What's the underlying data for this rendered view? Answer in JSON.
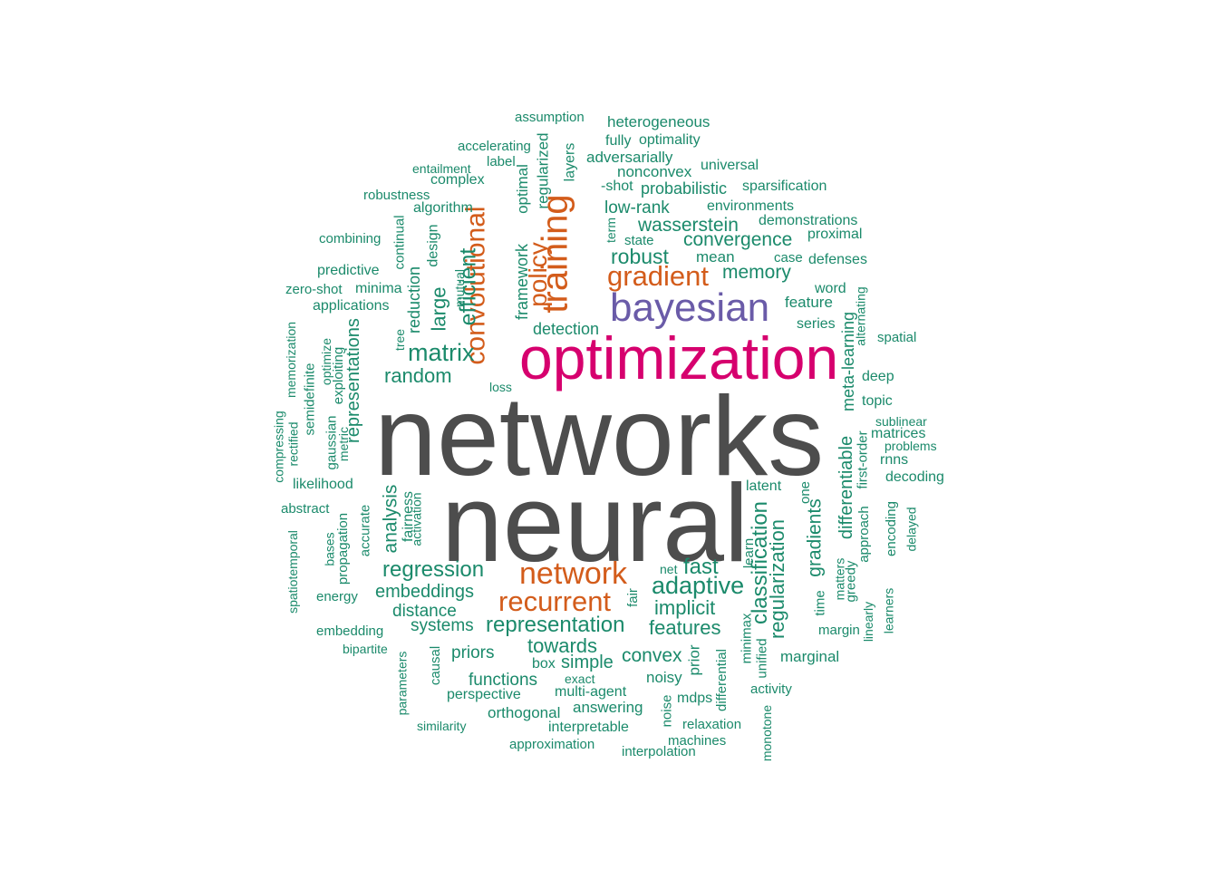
{
  "colors": {
    "gray": "#4d4d4d",
    "magenta": "#d6006e",
    "purple": "#6a5ba8",
    "orange": "#d35c1b",
    "teal": "#1b8a6b"
  },
  "words": [
    {
      "text": "networks",
      "color": "gray"
    },
    {
      "text": "neural",
      "color": "gray"
    },
    {
      "text": "optimization",
      "color": "magenta"
    },
    {
      "text": "bayesian",
      "color": "purple"
    },
    {
      "text": "training",
      "color": "orange"
    },
    {
      "text": "convolutional",
      "color": "orange"
    },
    {
      "text": "gradient",
      "color": "orange"
    },
    {
      "text": "network",
      "color": "orange"
    },
    {
      "text": "recurrent",
      "color": "orange"
    },
    {
      "text": "policy",
      "color": "orange"
    },
    {
      "text": "efficient",
      "color": "teal"
    },
    {
      "text": "matrix",
      "color": "teal"
    },
    {
      "text": "robust",
      "color": "teal"
    },
    {
      "text": "memory",
      "color": "teal"
    },
    {
      "text": "wasserstein",
      "color": "teal"
    },
    {
      "text": "convergence",
      "color": "teal"
    },
    {
      "text": "low-rank",
      "color": "teal"
    },
    {
      "text": "probabilistic",
      "color": "teal"
    },
    {
      "text": "adaptive",
      "color": "teal"
    },
    {
      "text": "fast",
      "color": "teal"
    },
    {
      "text": "regression",
      "color": "teal"
    },
    {
      "text": "representation",
      "color": "teal"
    },
    {
      "text": "classification",
      "color": "teal"
    },
    {
      "text": "regularization",
      "color": "teal"
    },
    {
      "text": "gradients",
      "color": "teal"
    },
    {
      "text": "random",
      "color": "teal"
    },
    {
      "text": "large",
      "color": "teal"
    },
    {
      "text": "representations",
      "color": "teal"
    },
    {
      "text": "analysis",
      "color": "teal"
    },
    {
      "text": "implicit",
      "color": "teal"
    },
    {
      "text": "features",
      "color": "teal"
    },
    {
      "text": "towards",
      "color": "teal"
    },
    {
      "text": "convex",
      "color": "teal"
    },
    {
      "text": "embeddings",
      "color": "teal"
    },
    {
      "text": "distance",
      "color": "teal"
    },
    {
      "text": "systems",
      "color": "teal"
    },
    {
      "text": "priors",
      "color": "teal"
    },
    {
      "text": "simple",
      "color": "teal"
    },
    {
      "text": "functions",
      "color": "teal"
    },
    {
      "text": "differentiable",
      "color": "teal"
    },
    {
      "text": "meta-learning",
      "color": "teal"
    },
    {
      "text": "framework",
      "color": "teal"
    },
    {
      "text": "detection",
      "color": "teal"
    },
    {
      "text": "reduction",
      "color": "teal"
    },
    {
      "text": "design",
      "color": "teal"
    },
    {
      "text": "optimal",
      "color": "teal"
    },
    {
      "text": "regularized",
      "color": "teal"
    },
    {
      "text": "layers",
      "color": "teal"
    },
    {
      "text": "heterogeneous",
      "color": "teal"
    },
    {
      "text": "assumption",
      "color": "teal"
    },
    {
      "text": "fully",
      "color": "teal"
    },
    {
      "text": "optimality",
      "color": "teal"
    },
    {
      "text": "accelerating",
      "color": "teal"
    },
    {
      "text": "adversarially",
      "color": "teal"
    },
    {
      "text": "label",
      "color": "teal"
    },
    {
      "text": "nonconvex",
      "color": "teal"
    },
    {
      "text": "universal",
      "color": "teal"
    },
    {
      "text": "entailment",
      "color": "teal"
    },
    {
      "text": "complex",
      "color": "teal"
    },
    {
      "text": "-shot",
      "color": "teal"
    },
    {
      "text": "sparsification",
      "color": "teal"
    },
    {
      "text": "robustness",
      "color": "teal"
    },
    {
      "text": "algorithm",
      "color": "teal"
    },
    {
      "text": "environments",
      "color": "teal"
    },
    {
      "text": "demonstrations",
      "color": "teal"
    },
    {
      "text": "term",
      "color": "teal"
    },
    {
      "text": "state",
      "color": "teal"
    },
    {
      "text": "proximal",
      "color": "teal"
    },
    {
      "text": "combining",
      "color": "teal"
    },
    {
      "text": "continual",
      "color": "teal"
    },
    {
      "text": "mean",
      "color": "teal"
    },
    {
      "text": "case",
      "color": "teal"
    },
    {
      "text": "defenses",
      "color": "teal"
    },
    {
      "text": "predictive",
      "color": "teal"
    },
    {
      "text": "mutual",
      "color": "teal"
    },
    {
      "text": "zero-shot",
      "color": "teal"
    },
    {
      "text": "minima",
      "color": "teal"
    },
    {
      "text": "word",
      "color": "teal"
    },
    {
      "text": "feature",
      "color": "teal"
    },
    {
      "text": "alternating",
      "color": "teal"
    },
    {
      "text": "applications",
      "color": "teal"
    },
    {
      "text": "series",
      "color": "teal"
    },
    {
      "text": "spatial",
      "color": "teal"
    },
    {
      "text": "tree",
      "color": "teal"
    },
    {
      "text": "memorization",
      "color": "teal"
    },
    {
      "text": "optimize",
      "color": "teal"
    },
    {
      "text": "exploiting",
      "color": "teal"
    },
    {
      "text": "semidefinite",
      "color": "teal"
    },
    {
      "text": "loss",
      "color": "teal"
    },
    {
      "text": "deep",
      "color": "teal"
    },
    {
      "text": "topic",
      "color": "teal"
    },
    {
      "text": "compressing",
      "color": "teal"
    },
    {
      "text": "rectified",
      "color": "teal"
    },
    {
      "text": "gaussian",
      "color": "teal"
    },
    {
      "text": "metric",
      "color": "teal"
    },
    {
      "text": "sublinear",
      "color": "teal"
    },
    {
      "text": "matrices",
      "color": "teal"
    },
    {
      "text": "problems",
      "color": "teal"
    },
    {
      "text": "first-order",
      "color": "teal"
    },
    {
      "text": "rnns",
      "color": "teal"
    },
    {
      "text": "likelihood",
      "color": "teal"
    },
    {
      "text": "decoding",
      "color": "teal"
    },
    {
      "text": "latent",
      "color": "teal"
    },
    {
      "text": "one",
      "color": "teal"
    },
    {
      "text": "abstract",
      "color": "teal"
    },
    {
      "text": "fairness",
      "color": "teal"
    },
    {
      "text": "activation",
      "color": "teal"
    },
    {
      "text": "accurate",
      "color": "teal"
    },
    {
      "text": "approach",
      "color": "teal"
    },
    {
      "text": "encoding",
      "color": "teal"
    },
    {
      "text": "delayed",
      "color": "teal"
    },
    {
      "text": "spatiotemporal",
      "color": "teal"
    },
    {
      "text": "bases",
      "color": "teal"
    },
    {
      "text": "propagation",
      "color": "teal"
    },
    {
      "text": "learn",
      "color": "teal"
    },
    {
      "text": "net",
      "color": "teal"
    },
    {
      "text": "matters",
      "color": "teal"
    },
    {
      "text": "greedy",
      "color": "teal"
    },
    {
      "text": "energy",
      "color": "teal"
    },
    {
      "text": "fair",
      "color": "teal"
    },
    {
      "text": "time",
      "color": "teal"
    },
    {
      "text": "linearly",
      "color": "teal"
    },
    {
      "text": "learners",
      "color": "teal"
    },
    {
      "text": "minimax",
      "color": "teal"
    },
    {
      "text": "margin",
      "color": "teal"
    },
    {
      "text": "embedding",
      "color": "teal"
    },
    {
      "text": "bipartite",
      "color": "teal"
    },
    {
      "text": "unified",
      "color": "teal"
    },
    {
      "text": "marginal",
      "color": "teal"
    },
    {
      "text": "prior",
      "color": "teal"
    },
    {
      "text": "parameters",
      "color": "teal"
    },
    {
      "text": "causal",
      "color": "teal"
    },
    {
      "text": "box",
      "color": "teal"
    },
    {
      "text": "differential",
      "color": "teal"
    },
    {
      "text": "exact",
      "color": "teal"
    },
    {
      "text": "noisy",
      "color": "teal"
    },
    {
      "text": "perspective",
      "color": "teal"
    },
    {
      "text": "multi-agent",
      "color": "teal"
    },
    {
      "text": "mdps",
      "color": "teal"
    },
    {
      "text": "activity",
      "color": "teal"
    },
    {
      "text": "answering",
      "color": "teal"
    },
    {
      "text": "noise",
      "color": "teal"
    },
    {
      "text": "orthogonal",
      "color": "teal"
    },
    {
      "text": "relaxation",
      "color": "teal"
    },
    {
      "text": "similarity",
      "color": "teal"
    },
    {
      "text": "interpretable",
      "color": "teal"
    },
    {
      "text": "monotone",
      "color": "teal"
    },
    {
      "text": "machines",
      "color": "teal"
    },
    {
      "text": "approximation",
      "color": "teal"
    },
    {
      "text": "interpolation",
      "color": "teal"
    }
  ]
}
